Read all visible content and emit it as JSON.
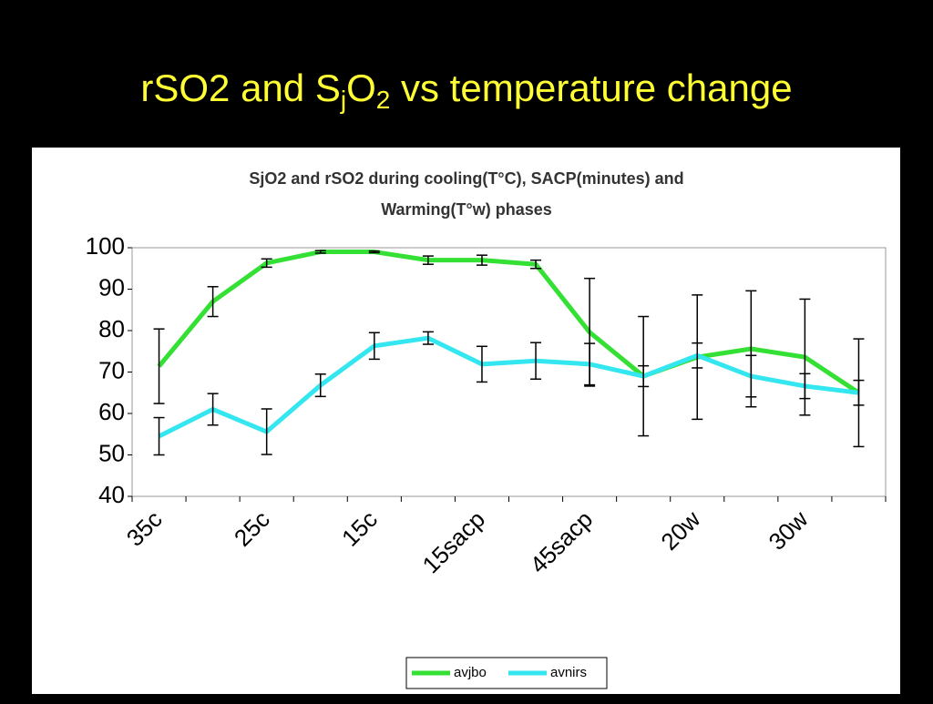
{
  "slide_title": [
    "rSO2 and S",
    "j",
    "O",
    "2",
    " vs temperature change"
  ],
  "chart_data": {
    "type": "line",
    "title": [
      "SjO2 and rSO2 during cooling(T°C), SACP(minutes) and",
      "Warming(T°w) phases"
    ],
    "categories": [
      "35c",
      null,
      "25c",
      null,
      "15c",
      null,
      "15sacp",
      null,
      "45sacp",
      null,
      "20w",
      null,
      "30w",
      null
    ],
    "series": [
      {
        "name": "avjbo",
        "color": "#33e033",
        "values": [
          71.4,
          87,
          96.3,
          99,
          99,
          97,
          97,
          96,
          79.6,
          69,
          73.6,
          75.6,
          73.6,
          65
        ],
        "errors": [
          9,
          3.6,
          1,
          0.3,
          0.2,
          1,
          1.2,
          1,
          13,
          14.4,
          15,
          14,
          14,
          13
        ]
      },
      {
        "name": "avnirs",
        "color": "#33e6f0",
        "values": [
          54.5,
          61,
          55.6,
          66.8,
          76.3,
          78.2,
          71.9,
          72.7,
          71.9,
          69,
          74,
          69,
          66.6,
          65
        ],
        "errors": [
          4.5,
          3.8,
          5.5,
          2.7,
          3.2,
          1.5,
          4.3,
          4.4,
          5,
          2.5,
          3,
          5,
          3,
          3
        ]
      }
    ],
    "ylim": [
      40,
      100
    ],
    "yticks": [
      40,
      50,
      60,
      70,
      80,
      90,
      100
    ],
    "grid": false,
    "legend": "bottom"
  }
}
